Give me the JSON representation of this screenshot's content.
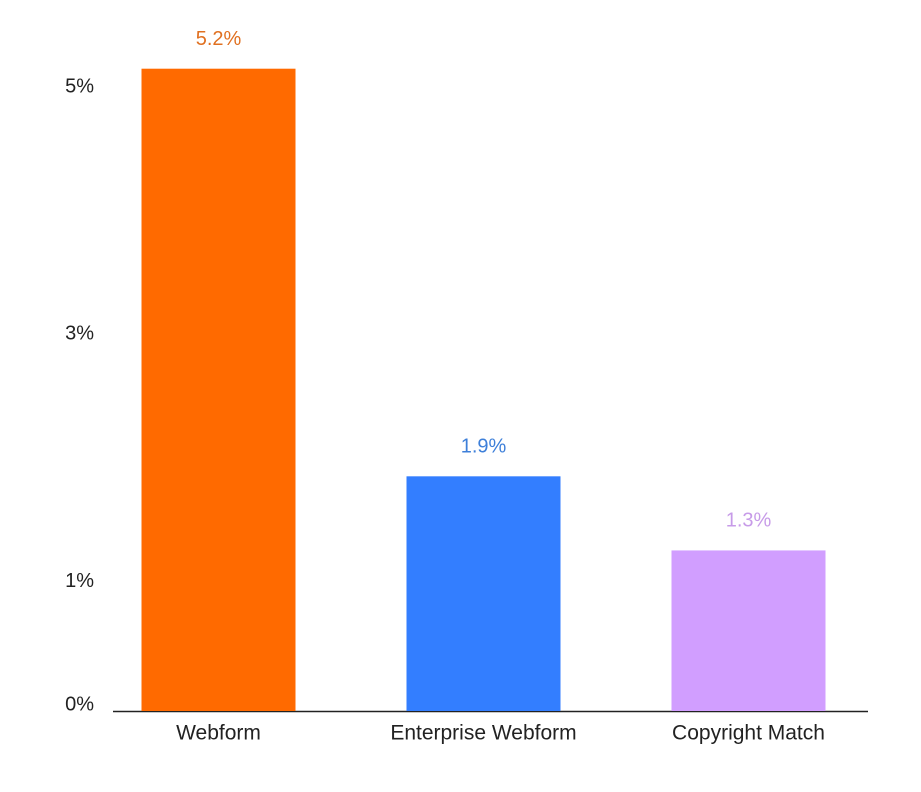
{
  "chart_data": {
    "type": "bar",
    "categories": [
      "Webform",
      "Enterprise Webform",
      "Copyright Match"
    ],
    "values": [
      5.2,
      1.9,
      1.3
    ],
    "value_labels": [
      "5.2%",
      "1.9%",
      "1.3%"
    ],
    "colors": [
      "#ff6a00",
      "#337eff",
      "#d19eff"
    ],
    "label_colors": [
      "#e07020",
      "#3d7fd9",
      "#c79be8"
    ],
    "ylim": [
      0,
      5.4
    ],
    "yticks": [
      {
        "value": 0,
        "label": "0%"
      },
      {
        "value": 1,
        "label": "1%"
      },
      {
        "value": 3,
        "label": "3%"
      },
      {
        "value": 5,
        "label": "5%"
      }
    ],
    "grid": false
  }
}
